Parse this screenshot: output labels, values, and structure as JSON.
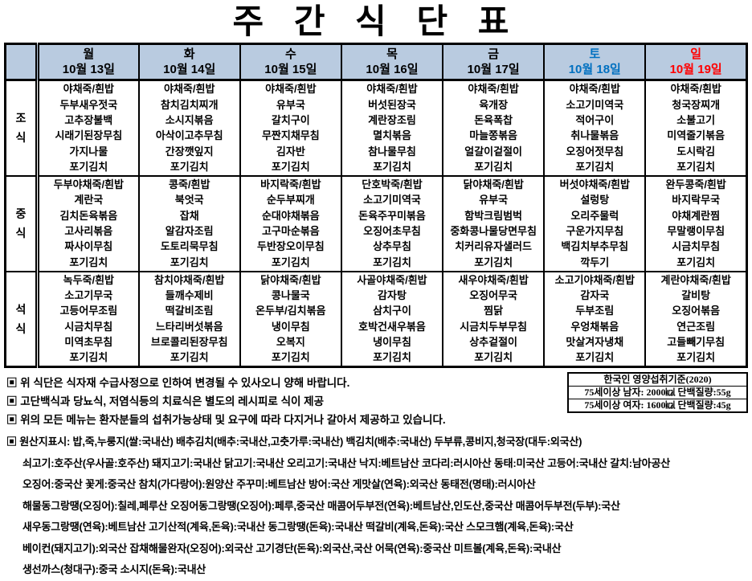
{
  "title": "주 간 식 단 표",
  "colors": {
    "header_bg": "#b9cbe0",
    "saturday_text": "#0070c0",
    "sunday_text": "#ff0000",
    "border": "#000000"
  },
  "table": {
    "days": [
      {
        "name": "월",
        "date": "10월 13일"
      },
      {
        "name": "화",
        "date": "10월 14일"
      },
      {
        "name": "수",
        "date": "10월 15일"
      },
      {
        "name": "목",
        "date": "10월 16일"
      },
      {
        "name": "금",
        "date": "10월 17일"
      },
      {
        "name": "토",
        "date": "10월 18일"
      },
      {
        "name": "일",
        "date": "10월 19일"
      }
    ],
    "meals": [
      {
        "label": "조식",
        "menus": [
          [
            "야채죽/흰밥",
            "두부새우젓국",
            "고추장불백",
            "시래기된장무침",
            "가지나물",
            "포기김치"
          ],
          [
            "야채죽/흰밥",
            "참치김치찌개",
            "소시지볶음",
            "아삭이고추무침",
            "간장깻잎지",
            "포기김치"
          ],
          [
            "야채죽/흰밥",
            "유부국",
            "갈치구이",
            "무짠지채무침",
            "김자반",
            "포기김치"
          ],
          [
            "야채죽/흰밥",
            "버섯된장국",
            "계란장조림",
            "멸치볶음",
            "참나물무침",
            "포기김치"
          ],
          [
            "야채죽/흰밥",
            "육개장",
            "돈육폭찹",
            "마늘쫑볶음",
            "얼갈이겉절이",
            "포기김치"
          ],
          [
            "야채죽/흰밥",
            "소고기미역국",
            "적어구이",
            "취나물볶음",
            "오징어젓무침",
            "포기김치"
          ],
          [
            "야채죽/흰밥",
            "청국장찌개",
            "소불고기",
            "미역줄기볶음",
            "도시락김",
            "포기김치"
          ]
        ]
      },
      {
        "label": "중식",
        "menus": [
          [
            "두부야채죽/흰밥",
            "계란국",
            "김치돈육볶음",
            "고사리볶음",
            "짜사이무침",
            "포기김치"
          ],
          [
            "콩죽/흰밥",
            "북엇국",
            "잡채",
            "알감자조림",
            "도토리묵무침",
            "포기김치"
          ],
          [
            "바지락죽/흰밥",
            "순두부찌개",
            "순대야채볶음",
            "고구마순볶음",
            "두반장오이무침",
            "포기김치"
          ],
          [
            "단호박죽/흰밥",
            "소고기미역국",
            "돈육주꾸미볶음",
            "오징어초무침",
            "상추무침",
            "포기김치"
          ],
          [
            "닭야채죽/흰밥",
            "유부국",
            "함박크림범벅",
            "중화콩나물당면무침",
            "치커리유자샐러드",
            "포기김치"
          ],
          [
            "버섯야채죽/흰밥",
            "설렁탕",
            "오리주물럭",
            "구운가지무침",
            "백김치부추무침",
            "깍두기"
          ],
          [
            "완두콩죽/흰밥",
            "바지락무국",
            "야채계란찜",
            "무말랭이무침",
            "시금치무침",
            "포기김치"
          ]
        ]
      },
      {
        "label": "석식",
        "menus": [
          [
            "녹두죽/흰밥",
            "소고기무국",
            "고등어무조림",
            "시금치무침",
            "미역초무침",
            "포기김치"
          ],
          [
            "참치야채죽/흰밥",
            "들깨수제비",
            "떡갈비조림",
            "느타리버섯볶음",
            "브로콜리된장무침",
            "포기김치"
          ],
          [
            "닭야채죽/흰밥",
            "콩나물국",
            "온두부/김치볶음",
            "냉이무침",
            "오복지",
            "포기김치"
          ],
          [
            "사골야채죽/흰밥",
            "감자탕",
            "삼치구이",
            "호박건새우볶음",
            "냉이무침",
            "포기김치"
          ],
          [
            "새우야채죽/흰밥",
            "오징어무국",
            "찜닭",
            "시금치두부무침",
            "상추겉절이",
            "포기김치"
          ],
          [
            "소고기야채죽/흰밥",
            "감자국",
            "두부조림",
            "우엉채볶음",
            "맛살겨자냉채",
            "포기김치"
          ],
          [
            "계란야채죽/흰밥",
            "갈비탕",
            "오징어볶음",
            "연근조림",
            "고들빼기무침",
            "포기김치"
          ]
        ]
      }
    ]
  },
  "notes": [
    "▣ 위 식단은 식자재 수급사정으로 인하여 변경될 수 있사오니 양해 바랍니다.",
    "▣ 고단백식과 당뇨식, 저염식등의 치료식은 별도의 레시피로 식이 제공",
    "▣ 위의 모든 메뉴는 환자분들의 섭취가능상태 및 요구에 따라 다지거나 갈아서 제공하고 있습니다."
  ],
  "nutrition_box": {
    "title": "한국인 영양섭취기준(2020)",
    "rows": [
      "75세이상 남자: 2000㎉ 단백질량:55g",
      "75세이상 여자: 1600㎉ 단백질량:45g"
    ]
  },
  "origin": {
    "lines": [
      "▣ 원산지표시: 밥,죽,누룽지(쌀:국내산) 배추김치(배추:국내산,고춧가루:국내산) 백김치(배추:국내산) 두부류,콩비지,청국장(대두:외국산)",
      "쇠고기:호주산(우사골:호주산) 돼지고기:국내산 닭고기:국내산 오리고기:국내산 낙지:베트남산 코다리:러시아산 동태:미국산 고등어:국내산 갈치:남아공산",
      "오징어:중국산 꽃게:중국산 참치(가다랑어):원양산 주꾸미:베트남산 방어:국산 게맛살(연육):외국산 동태전(명태):러시아산",
      "해물동그랑땡(오징어):칠레,페루산 오징어동그랑땡(오징어):페루,중국산 매콤어두부전(연육):베트남산,인도산,중국산 매콤어두부전(두부):국산",
      "새우동그랑땡(연육):베트남산 고기산적(계육,돈육):국내산  동그랑땡(돈육):국내산 떡갈비(계육,돈육):국산 스모크햄(계육,돈육):국산",
      "베이컨(돼지고기):외국산 잡채해물완자(오징어):외국산 고기경단(돈육):외국산,국산  어묵(연육):중국산  미트볼(계육,돈육):국내산",
      "생선까스(청대구):중국 소시지(돈육):국내산"
    ]
  }
}
